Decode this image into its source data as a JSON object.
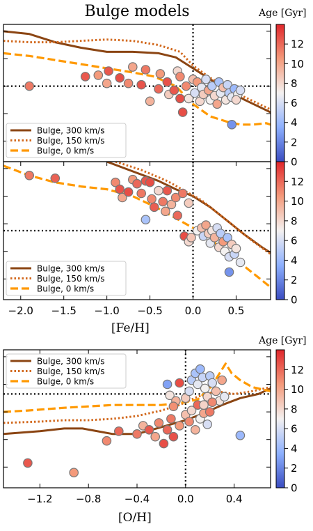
{
  "figure": {
    "title": "Bulge models",
    "colorbar_label": "Age [Gyr]",
    "colorbar_ticks": [
      0,
      2,
      4,
      6,
      8,
      10,
      12
    ],
    "colorbar_range": [
      0,
      14
    ],
    "colors": {
      "brown": "#8b4513",
      "darkorange": "#d2691e",
      "orange": "#ff9900",
      "cold": "#3a4cc0",
      "warm": "#e0262b"
    }
  },
  "chart_data": [
    {
      "type": "scatter",
      "title": "Bulge models",
      "xlabel": "",
      "xlim": [
        -2.2,
        0.9
      ],
      "ylim": [
        0,
        1
      ],
      "xticks": [],
      "legend": [
        "Bulge, 300 km/s",
        "Bulge, 150 km/s",
        "Bulge, 0 km/s"
      ],
      "legend_position": "lower-left",
      "reference_x": 0.0,
      "reference_y": 0.55,
      "series": [
        {
          "name": "Bulge, 300 km/s",
          "style": "solid",
          "x": [
            -2.2,
            -1.9,
            -1.6,
            -1.3,
            -1.0,
            -0.7,
            -0.4,
            -0.2,
            0.0,
            0.2,
            0.4,
            0.6,
            0.8,
            0.9
          ],
          "y": [
            0.95,
            0.93,
            0.87,
            0.83,
            0.8,
            0.8,
            0.79,
            0.76,
            0.68,
            0.6,
            0.52,
            0.45,
            0.39,
            0.36
          ]
        },
        {
          "name": "Bulge, 150 km/s",
          "style": "dotted",
          "x": [
            -2.2,
            -1.9,
            -1.6,
            -1.3,
            -1.0,
            -0.7,
            -0.4,
            -0.15,
            0.0,
            0.2,
            0.4,
            0.6,
            0.8,
            0.9
          ],
          "y": [
            0.88,
            0.87,
            0.87,
            0.88,
            0.89,
            0.88,
            0.85,
            0.8,
            0.7,
            0.61,
            0.54,
            0.47,
            0.41,
            0.38
          ]
        },
        {
          "name": "Bulge, 0 km/s",
          "style": "dashed",
          "x": [
            -2.2,
            -1.9,
            -1.6,
            -1.3,
            -1.0,
            -0.7,
            -0.45,
            -0.2,
            0.0,
            0.2,
            0.4,
            0.55,
            0.7,
            0.85,
            0.9
          ],
          "y": [
            0.79,
            0.77,
            0.74,
            0.71,
            0.68,
            0.65,
            0.62,
            0.55,
            0.42,
            0.33,
            0.29,
            0.27,
            0.27,
            0.28,
            0.27
          ]
        }
      ],
      "points": [
        {
          "x": -1.9,
          "y": 0.55,
          "age": 11.5
        },
        {
          "x": -1.25,
          "y": 0.62,
          "age": 12.5
        },
        {
          "x": -1.1,
          "y": 0.63,
          "age": 10.5
        },
        {
          "x": -1.0,
          "y": 0.57,
          "age": 10.0
        },
        {
          "x": -0.98,
          "y": 0.66,
          "age": 12.5
        },
        {
          "x": -0.85,
          "y": 0.61,
          "age": 12.8
        },
        {
          "x": -0.75,
          "y": 0.57,
          "age": 11.0
        },
        {
          "x": -0.7,
          "y": 0.69,
          "age": 10.0
        },
        {
          "x": -0.6,
          "y": 0.56,
          "age": 12.6
        },
        {
          "x": -0.55,
          "y": 0.67,
          "age": 11.5
        },
        {
          "x": -0.5,
          "y": 0.44,
          "age": 9.5
        },
        {
          "x": -0.4,
          "y": 0.53,
          "age": 12.0
        },
        {
          "x": -0.38,
          "y": 0.64,
          "age": 10.5
        },
        {
          "x": -0.3,
          "y": 0.58,
          "age": 12.7
        },
        {
          "x": -0.28,
          "y": 0.49,
          "age": 8.5
        },
        {
          "x": -0.22,
          "y": 0.52,
          "age": 12.5
        },
        {
          "x": -0.18,
          "y": 0.66,
          "age": 8.0
        },
        {
          "x": -0.15,
          "y": 0.62,
          "age": 11.0
        },
        {
          "x": -0.12,
          "y": 0.36,
          "age": 12.8
        },
        {
          "x": -0.08,
          "y": 0.55,
          "age": 11.0
        },
        {
          "x": -0.05,
          "y": 0.46,
          "age": 7.5
        },
        {
          "x": 0.0,
          "y": 0.6,
          "age": 9.0
        },
        {
          "x": 0.02,
          "y": 0.5,
          "age": 6.0
        },
        {
          "x": 0.05,
          "y": 0.58,
          "age": 10.5
        },
        {
          "x": 0.08,
          "y": 0.44,
          "age": 8.0
        },
        {
          "x": 0.1,
          "y": 0.54,
          "age": 6.5
        },
        {
          "x": 0.12,
          "y": 0.49,
          "age": 8.5
        },
        {
          "x": 0.15,
          "y": 0.6,
          "age": 6.0
        },
        {
          "x": 0.18,
          "y": 0.52,
          "age": 10.0
        },
        {
          "x": 0.2,
          "y": 0.45,
          "age": 7.0
        },
        {
          "x": 0.22,
          "y": 0.55,
          "age": 5.0
        },
        {
          "x": 0.25,
          "y": 0.48,
          "age": 8.0
        },
        {
          "x": 0.28,
          "y": 0.42,
          "age": 10.0
        },
        {
          "x": 0.3,
          "y": 0.58,
          "age": 4.5
        },
        {
          "x": 0.32,
          "y": 0.5,
          "age": 6.5
        },
        {
          "x": 0.35,
          "y": 0.54,
          "age": 9.0
        },
        {
          "x": 0.38,
          "y": 0.45,
          "age": 7.5
        },
        {
          "x": 0.4,
          "y": 0.56,
          "age": 5.5
        },
        {
          "x": 0.42,
          "y": 0.5,
          "age": 5.0
        },
        {
          "x": 0.45,
          "y": 0.47,
          "age": 6.5
        },
        {
          "x": 0.48,
          "y": 0.53,
          "age": 4.0
        },
        {
          "x": 0.52,
          "y": 0.49,
          "age": 7.0
        },
        {
          "x": 0.5,
          "y": 0.45,
          "age": 8.0
        },
        {
          "x": 0.45,
          "y": 0.27,
          "age": 2.5
        },
        {
          "x": 0.55,
          "y": 0.52,
          "age": 6.0
        },
        {
          "x": -0.15,
          "y": 0.46,
          "age": 12.8
        }
      ]
    },
    {
      "type": "scatter",
      "xlabel": "[Fe/H]",
      "xlim": [
        -2.2,
        0.9
      ],
      "ylim": [
        0,
        1
      ],
      "xticks": [
        -2.0,
        -1.5,
        -1.0,
        -0.5,
        0.0,
        0.5
      ],
      "xticklabels": [
        "−2.0",
        "−1.5",
        "−1.0",
        "−0.5",
        "0.0",
        "0.5"
      ],
      "legend": [
        "Bulge, 300 km/s",
        "Bulge, 150 km/s",
        "Bulge, 0 km/s"
      ],
      "legend_position": "lower-left",
      "reference_x": 0.0,
      "reference_y": 0.5,
      "series": [
        {
          "name": "Bulge, 300 km/s",
          "style": "solid",
          "x": [
            -1.0,
            -0.7,
            -0.4,
            -0.2,
            0.0,
            0.2,
            0.4,
            0.6,
            0.8,
            0.9
          ],
          "y": [
            1.0,
            0.93,
            0.86,
            0.8,
            0.75,
            0.67,
            0.57,
            0.47,
            0.38,
            0.34
          ]
        },
        {
          "name": "Bulge, 150 km/s",
          "style": "dotted",
          "x": [
            -0.9,
            -0.6,
            -0.3,
            -0.1,
            0.1,
            0.3,
            0.5,
            0.7,
            0.9
          ],
          "y": [
            1.0,
            0.94,
            0.86,
            0.79,
            0.72,
            0.62,
            0.52,
            0.42,
            0.33
          ]
        },
        {
          "name": "Bulge, 0 km/s",
          "style": "dashed",
          "x": [
            -2.2,
            -1.9,
            -1.6,
            -1.3,
            -1.0,
            -0.7,
            -0.4,
            -0.2,
            0.0,
            0.2,
            0.4,
            0.6,
            0.8,
            0.9
          ],
          "y": [
            0.97,
            0.9,
            0.85,
            0.82,
            0.8,
            0.75,
            0.66,
            0.59,
            0.52,
            0.44,
            0.33,
            0.24,
            0.14,
            0.09
          ]
        }
      ],
      "points": [
        {
          "x": -1.9,
          "y": 0.9,
          "age": 11.5
        },
        {
          "x": -1.6,
          "y": 0.88,
          "age": 12.2
        },
        {
          "x": -0.9,
          "y": 0.85,
          "age": 11.0
        },
        {
          "x": -0.85,
          "y": 0.8,
          "age": 12.6
        },
        {
          "x": -0.82,
          "y": 0.74,
          "age": 10.0
        },
        {
          "x": -0.75,
          "y": 0.78,
          "age": 12.8
        },
        {
          "x": -0.7,
          "y": 0.87,
          "age": 10.5
        },
        {
          "x": -0.65,
          "y": 0.84,
          "age": 12.0
        },
        {
          "x": -0.6,
          "y": 0.77,
          "age": 11.5
        },
        {
          "x": -0.55,
          "y": 0.86,
          "age": 12.5
        },
        {
          "x": -0.5,
          "y": 0.85,
          "age": 12.8
        },
        {
          "x": -0.48,
          "y": 0.73,
          "age": 11.0
        },
        {
          "x": -0.45,
          "y": 0.67,
          "age": 12.3
        },
        {
          "x": -0.4,
          "y": 0.79,
          "age": 8.0
        },
        {
          "x": -0.35,
          "y": 0.71,
          "age": 11.5
        },
        {
          "x": -0.32,
          "y": 0.64,
          "age": 10.0
        },
        {
          "x": -0.3,
          "y": 0.79,
          "age": 12.5
        },
        {
          "x": -0.25,
          "y": 0.69,
          "age": 9.5
        },
        {
          "x": -0.2,
          "y": 0.74,
          "age": 11.0
        },
        {
          "x": -0.18,
          "y": 0.61,
          "age": 12.0
        },
        {
          "x": -0.12,
          "y": 0.77,
          "age": 11.5
        },
        {
          "x": -0.05,
          "y": 0.7,
          "age": 8.5
        },
        {
          "x": -0.55,
          "y": 0.58,
          "age": 4.5
        },
        {
          "x": -0.1,
          "y": 0.46,
          "age": 12.8
        },
        {
          "x": -0.05,
          "y": 0.42,
          "age": 8.0
        },
        {
          "x": 0.05,
          "y": 0.5,
          "age": 7.0
        },
        {
          "x": 0.1,
          "y": 0.52,
          "age": 9.0
        },
        {
          "x": 0.12,
          "y": 0.46,
          "age": 5.5
        },
        {
          "x": 0.15,
          "y": 0.54,
          "age": 10.0
        },
        {
          "x": 0.18,
          "y": 0.48,
          "age": 8.5
        },
        {
          "x": 0.2,
          "y": 0.41,
          "age": 6.5
        },
        {
          "x": 0.22,
          "y": 0.5,
          "age": 7.5
        },
        {
          "x": 0.25,
          "y": 0.45,
          "age": 9.5
        },
        {
          "x": 0.28,
          "y": 0.52,
          "age": 6.0
        },
        {
          "x": 0.3,
          "y": 0.38,
          "age": 8.0
        },
        {
          "x": 0.32,
          "y": 0.48,
          "age": 5.0
        },
        {
          "x": 0.35,
          "y": 0.42,
          "age": 10.5
        },
        {
          "x": 0.37,
          "y": 0.35,
          "age": 7.0
        },
        {
          "x": 0.4,
          "y": 0.45,
          "age": 4.5
        },
        {
          "x": 0.42,
          "y": 0.31,
          "age": 6.0
        },
        {
          "x": 0.45,
          "y": 0.4,
          "age": 8.5
        },
        {
          "x": 0.48,
          "y": 0.33,
          "age": 5.5
        },
        {
          "x": 0.5,
          "y": 0.37,
          "age": 7.5
        },
        {
          "x": 0.55,
          "y": 0.27,
          "age": 6.5
        },
        {
          "x": 0.42,
          "y": 0.2,
          "age": 2.5
        },
        {
          "x": -0.02,
          "y": 0.45,
          "age": 8.8
        }
      ]
    },
    {
      "type": "scatter",
      "xlabel": "[O/H]",
      "xlim": [
        -1.5,
        0.7
      ],
      "ylim": [
        0,
        1
      ],
      "xticks": [
        -1.2,
        -0.8,
        -0.4,
        0.0,
        0.4
      ],
      "xticklabels": [
        "−1.2",
        "−0.8",
        "−0.4",
        "0.0",
        "0.4"
      ],
      "legend": [
        "Bulge, 300 km/s",
        "Bulge, 150 km/s",
        "Bulge, 0 km/s"
      ],
      "legend_position": "upper-left",
      "colorbar_label": "Age [Gyr]",
      "reference_x": 0.0,
      "reference_y": 0.68,
      "series": [
        {
          "name": "Bulge, 300 km/s",
          "style": "solid",
          "x": [
            -1.5,
            -1.2,
            -1.0,
            -0.85,
            -0.6,
            -0.4,
            -0.2,
            0.0,
            0.15,
            0.3,
            0.45,
            0.6,
            0.7
          ],
          "y": [
            0.39,
            0.41,
            0.43,
            0.43,
            0.39,
            0.39,
            0.44,
            0.49,
            0.54,
            0.6,
            0.65,
            0.68,
            0.72
          ]
        },
        {
          "name": "Bulge, 150 km/s",
          "style": "dotted",
          "x": [
            -1.5,
            -1.2,
            -1.0,
            -0.8,
            -0.6,
            -0.4,
            -0.2,
            -0.05,
            0.1,
            0.25,
            0.4,
            0.55,
            0.7
          ],
          "y": [
            0.47,
            0.48,
            0.49,
            0.49,
            0.5,
            0.52,
            0.56,
            0.6,
            0.66,
            0.7,
            0.68,
            0.7,
            0.73
          ]
        },
        {
          "name": "Bulge, 0 km/s",
          "style": "dashed",
          "x": [
            -1.5,
            -1.3,
            -1.0,
            -0.8,
            -0.6,
            -0.4,
            -0.2,
            0.0,
            0.1,
            0.2,
            0.28,
            0.33,
            0.38,
            0.45,
            0.55,
            0.65,
            0.7
          ],
          "y": [
            0.55,
            0.56,
            0.58,
            0.59,
            0.6,
            0.6,
            0.6,
            0.62,
            0.64,
            0.72,
            0.83,
            0.9,
            0.83,
            0.78,
            0.73,
            0.71,
            0.7
          ]
        }
      ],
      "points": [
        {
          "x": -1.3,
          "y": 0.18,
          "age": 12.5
        },
        {
          "x": -0.92,
          "y": 0.11,
          "age": 10.5
        },
        {
          "x": -0.65,
          "y": 0.34,
          "age": 11.0
        },
        {
          "x": -0.55,
          "y": 0.41,
          "age": 12.0
        },
        {
          "x": -0.4,
          "y": 0.39,
          "age": 11.5
        },
        {
          "x": -0.35,
          "y": 0.45,
          "age": 9.5
        },
        {
          "x": -0.3,
          "y": 0.42,
          "age": 12.5
        },
        {
          "x": -0.25,
          "y": 0.37,
          "age": 10.0
        },
        {
          "x": -0.22,
          "y": 0.47,
          "age": 11.0
        },
        {
          "x": -0.18,
          "y": 0.32,
          "age": 12.8
        },
        {
          "x": -0.15,
          "y": 0.42,
          "age": 12.0
        },
        {
          "x": -0.12,
          "y": 0.5,
          "age": 11.5
        },
        {
          "x": -0.1,
          "y": 0.37,
          "age": 12.7
        },
        {
          "x": -0.05,
          "y": 0.45,
          "age": 10.5
        },
        {
          "x": 0.0,
          "y": 0.53,
          "age": 9.0
        },
        {
          "x": 0.03,
          "y": 0.48,
          "age": 11.0
        },
        {
          "x": 0.05,
          "y": 0.56,
          "age": 8.0
        },
        {
          "x": 0.08,
          "y": 0.42,
          "age": 9.5
        },
        {
          "x": 0.1,
          "y": 0.6,
          "age": 12.0
        },
        {
          "x": 0.12,
          "y": 0.5,
          "age": 7.0
        },
        {
          "x": 0.15,
          "y": 0.54,
          "age": 10.0
        },
        {
          "x": 0.18,
          "y": 0.46,
          "age": 6.0
        },
        {
          "x": -0.15,
          "y": 0.75,
          "age": 3.0
        },
        {
          "x": -0.13,
          "y": 0.67,
          "age": 7.5
        },
        {
          "x": -0.08,
          "y": 0.63,
          "age": 9.5
        },
        {
          "x": -0.05,
          "y": 0.76,
          "age": 12.8
        },
        {
          "x": 0.0,
          "y": 0.65,
          "age": 8.5
        },
        {
          "x": 0.03,
          "y": 0.7,
          "age": 6.0
        },
        {
          "x": 0.05,
          "y": 0.78,
          "age": 5.0
        },
        {
          "x": 0.08,
          "y": 0.83,
          "age": 4.5
        },
        {
          "x": 0.1,
          "y": 0.75,
          "age": 6.5
        },
        {
          "x": 0.12,
          "y": 0.86,
          "age": 4.0
        },
        {
          "x": 0.14,
          "y": 0.8,
          "age": 5.5
        },
        {
          "x": 0.16,
          "y": 0.72,
          "age": 7.0
        },
        {
          "x": 0.18,
          "y": 0.66,
          "age": 8.0
        },
        {
          "x": 0.2,
          "y": 0.81,
          "age": 5.0
        },
        {
          "x": 0.22,
          "y": 0.76,
          "age": 6.0
        },
        {
          "x": 0.25,
          "y": 0.7,
          "age": 9.0
        },
        {
          "x": 0.28,
          "y": 0.63,
          "age": 7.5
        },
        {
          "x": 0.3,
          "y": 0.78,
          "age": 10.0
        },
        {
          "x": 0.2,
          "y": 0.55,
          "age": 11.5
        },
        {
          "x": 0.45,
          "y": 0.38,
          "age": 4.0
        },
        {
          "x": 0.32,
          "y": 0.66,
          "age": 6.5
        },
        {
          "x": -0.1,
          "y": 0.59,
          "age": 10.8
        },
        {
          "x": 0.15,
          "y": 0.6,
          "age": 8.2
        },
        {
          "x": 0.22,
          "y": 0.62,
          "age": 11.0
        }
      ]
    }
  ]
}
